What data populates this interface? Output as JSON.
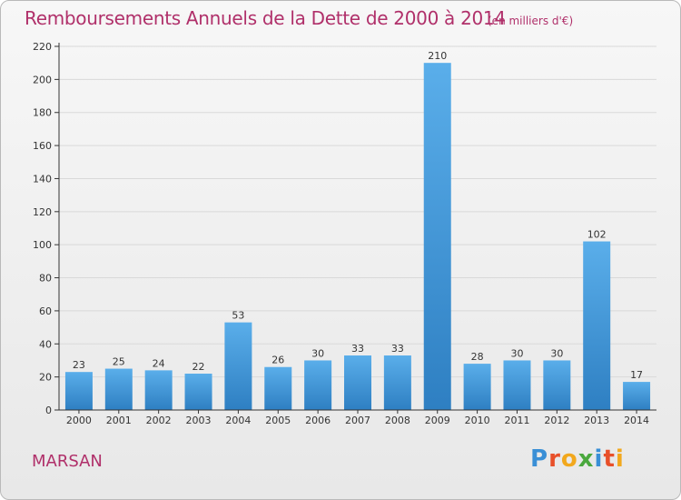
{
  "header": {
    "title": "Remboursements Annuels de la Dette de 2000 à 2014",
    "subtitle": "(en milliers d'€)"
  },
  "footer": {
    "commune": "MARSAN",
    "brand_letters": [
      {
        "ch": "P",
        "color": "#3a8fd6"
      },
      {
        "ch": "r",
        "color": "#e8502a"
      },
      {
        "ch": "o",
        "color": "#f2a81d"
      },
      {
        "ch": "x",
        "color": "#4aa83d"
      },
      {
        "ch": "i",
        "color": "#3a8fd6"
      },
      {
        "ch": "t",
        "color": "#e8502a"
      },
      {
        "ch": "i",
        "color": "#f2a81d"
      }
    ]
  },
  "chart_data": {
    "type": "bar",
    "title": "Remboursements Annuels de la Dette de 2000 à 2014",
    "subtitle": "(en milliers d'€)",
    "categories": [
      "2000",
      "2001",
      "2002",
      "2003",
      "2004",
      "2005",
      "2006",
      "2007",
      "2008",
      "2009",
      "2010",
      "2011",
      "2012",
      "2013",
      "2014"
    ],
    "values": [
      23,
      25,
      24,
      22,
      53,
      26,
      30,
      33,
      33,
      210,
      28,
      30,
      30,
      102,
      17
    ],
    "ylim": [
      0,
      220
    ],
    "yticks": [
      0,
      20,
      40,
      60,
      80,
      100,
      120,
      140,
      160,
      180,
      200,
      220
    ],
    "grid": true,
    "colors": {
      "bar_light": "#5aaeea",
      "bar_dark": "#2e7fc2",
      "grid": "#d9d9d9",
      "axis": "#333333"
    }
  }
}
